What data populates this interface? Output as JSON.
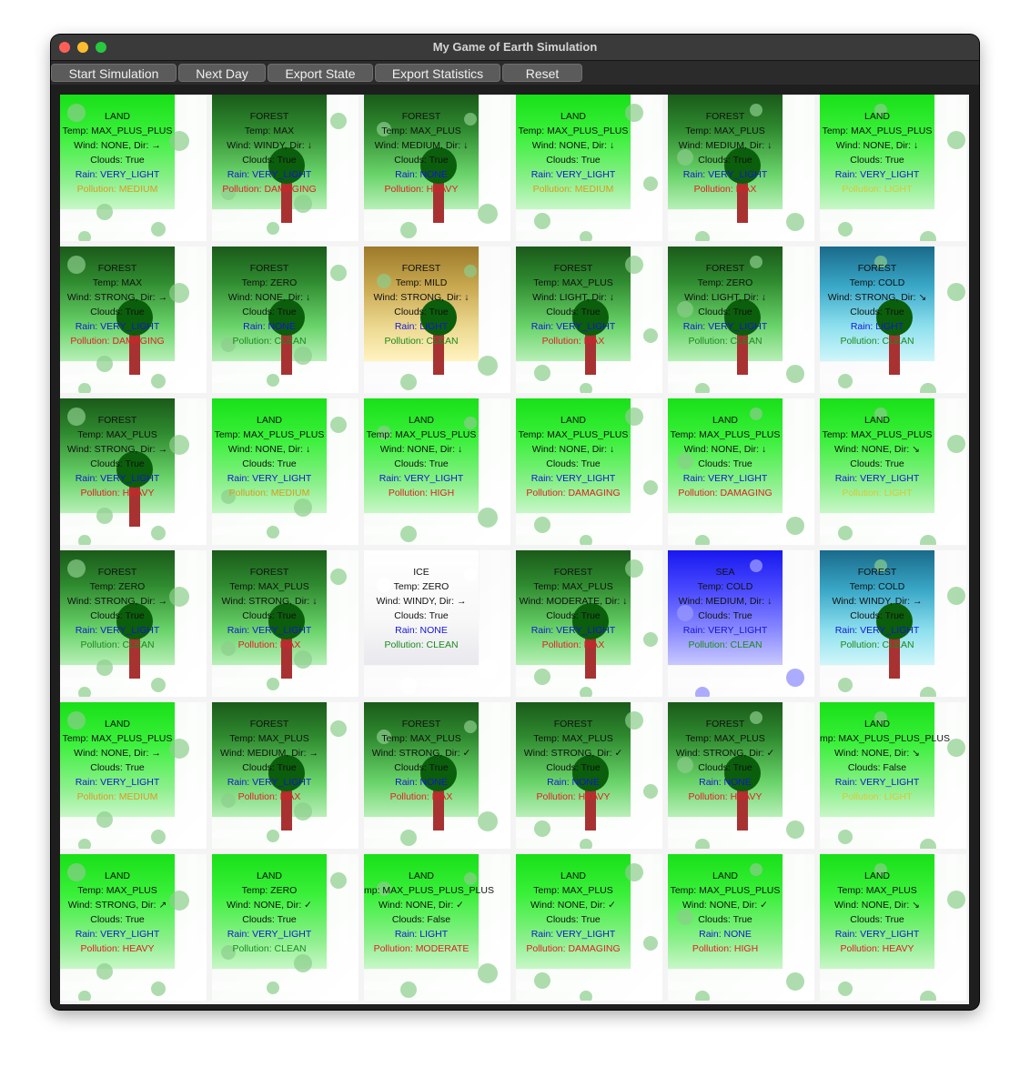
{
  "window": {
    "title": "My Game of Earth Simulation"
  },
  "toolbar": {
    "start": "Start Simulation",
    "next": "Next Day",
    "export_state": "Export State",
    "export_stats": "Export Statistics",
    "reset": "Reset"
  },
  "cells": [
    {
      "type": "LAND",
      "temp": "Temp: MAX_PLUS_PLUS",
      "wind": "Wind: NONE, Dir: →",
      "clouds": "Clouds: True",
      "rain": "Rain: VERY_LIGHT",
      "pollution": "Pollution: MEDIUM",
      "pcolor": "orange",
      "bg": "land"
    },
    {
      "type": "FOREST",
      "temp": "Temp: MAX",
      "wind": "Wind: WINDY, Dir: ↓",
      "clouds": "Clouds: True",
      "rain": "Rain: VERY_LIGHT",
      "pollution": "Pollution: DAMAGING",
      "pcolor": "red",
      "bg": "forest"
    },
    {
      "type": "FOREST",
      "temp": "Temp: MAX_PLUS",
      "wind": "Wind: MEDIUM, Dir: ↓",
      "clouds": "Clouds: True",
      "rain": "Rain: NONE",
      "pollution": "Pollution: HEAVY",
      "pcolor": "red",
      "bg": "forest"
    },
    {
      "type": "LAND",
      "temp": "Temp: MAX_PLUS_PLUS",
      "wind": "Wind: NONE, Dir: ↓",
      "clouds": "Clouds: True",
      "rain": "Rain: VERY_LIGHT",
      "pollution": "Pollution: MEDIUM",
      "pcolor": "orange",
      "bg": "land"
    },
    {
      "type": "FOREST",
      "temp": "Temp: MAX_PLUS",
      "wind": "Wind: MEDIUM, Dir: ↓",
      "clouds": "Clouds: True",
      "rain": "Rain: VERY_LIGHT",
      "pollution": "Pollution: MAX",
      "pcolor": "red",
      "bg": "forest"
    },
    {
      "type": "LAND",
      "temp": "Temp: MAX_PLUS_PLUS",
      "wind": "Wind: NONE, Dir: ↓",
      "clouds": "Clouds: True",
      "rain": "Rain: VERY_LIGHT",
      "pollution": "Pollution: LIGHT",
      "pcolor": "yellow",
      "bg": "land"
    },
    {
      "type": "FOREST",
      "temp": "Temp: MAX",
      "wind": "Wind: STRONG, Dir: →",
      "clouds": "Clouds: True",
      "rain": "Rain: VERY_LIGHT",
      "pollution": "Pollution: DAMAGING",
      "pcolor": "red",
      "bg": "forest"
    },
    {
      "type": "FOREST",
      "temp": "Temp: ZERO",
      "wind": "Wind: NONE, Dir: ↓",
      "clouds": "Clouds: True",
      "rain": "Rain: NONE",
      "pollution": "Pollution: CLEAN",
      "pcolor": "green",
      "bg": "forest"
    },
    {
      "type": "FOREST",
      "temp": "Temp: MILD",
      "wind": "Wind: STRONG, Dir: ↓",
      "clouds": "Clouds: True",
      "rain": "Rain: LIGHT",
      "pollution": "Pollution: CLEAN",
      "pcolor": "green",
      "bg": "desert"
    },
    {
      "type": "FOREST",
      "temp": "Temp: MAX_PLUS",
      "wind": "Wind: LIGHT, Dir: ↓",
      "clouds": "Clouds: True",
      "rain": "Rain: VERY_LIGHT",
      "pollution": "Pollution: MAX",
      "pcolor": "red",
      "bg": "forest"
    },
    {
      "type": "FOREST",
      "temp": "Temp: ZERO",
      "wind": "Wind: LIGHT, Dir: ↓",
      "clouds": "Clouds: True",
      "rain": "Rain: VERY_LIGHT",
      "pollution": "Pollution: CLEAN",
      "pcolor": "green",
      "bg": "forest"
    },
    {
      "type": "FOREST",
      "temp": "Temp: COLD",
      "wind": "Wind: STRONG, Dir: ↘",
      "clouds": "Clouds: True",
      "rain": "Rain: LIGHT",
      "pollution": "Pollution: CLEAN",
      "pcolor": "green",
      "bg": "cold"
    },
    {
      "type": "FOREST",
      "temp": "Temp: MAX_PLUS",
      "wind": "Wind: STRONG, Dir: →",
      "clouds": "Clouds: True",
      "rain": "Rain: VERY_LIGHT",
      "pollution": "Pollution: HEAVY",
      "pcolor": "red",
      "bg": "forest"
    },
    {
      "type": "LAND",
      "temp": "Temp: MAX_PLUS_PLUS",
      "wind": "Wind: NONE, Dir: ↓",
      "clouds": "Clouds: True",
      "rain": "Rain: VERY_LIGHT",
      "pollution": "Pollution: MEDIUM",
      "pcolor": "orange",
      "bg": "land"
    },
    {
      "type": "LAND",
      "temp": "Temp: MAX_PLUS_PLUS",
      "wind": "Wind: NONE, Dir: ↓",
      "clouds": "Clouds: True",
      "rain": "Rain: VERY_LIGHT",
      "pollution": "Pollution: HIGH",
      "pcolor": "red",
      "bg": "land"
    },
    {
      "type": "LAND",
      "temp": "Temp: MAX_PLUS_PLUS",
      "wind": "Wind: NONE, Dir: ↓",
      "clouds": "Clouds: True",
      "rain": "Rain: VERY_LIGHT",
      "pollution": "Pollution: DAMAGING",
      "pcolor": "red",
      "bg": "land"
    },
    {
      "type": "LAND",
      "temp": "Temp: MAX_PLUS_PLUS",
      "wind": "Wind: NONE, Dir: ↓",
      "clouds": "Clouds: True",
      "rain": "Rain: VERY_LIGHT",
      "pollution": "Pollution: DAMAGING",
      "pcolor": "red",
      "bg": "land"
    },
    {
      "type": "LAND",
      "temp": "Temp: MAX_PLUS_PLUS",
      "wind": "Wind: NONE, Dir: ↘",
      "clouds": "Clouds: True",
      "rain": "Rain: VERY_LIGHT",
      "pollution": "Pollution: LIGHT",
      "pcolor": "yellow",
      "bg": "land"
    },
    {
      "type": "FOREST",
      "temp": "Temp: ZERO",
      "wind": "Wind: STRONG, Dir: →",
      "clouds": "Clouds: True",
      "rain": "Rain: VERY_LIGHT",
      "pollution": "Pollution: CLEAN",
      "pcolor": "green",
      "bg": "forest"
    },
    {
      "type": "FOREST",
      "temp": "Temp: MAX_PLUS",
      "wind": "Wind: STRONG, Dir: ↓",
      "clouds": "Clouds: True",
      "rain": "Rain: VERY_LIGHT",
      "pollution": "Pollution: MAX",
      "pcolor": "red",
      "bg": "forest"
    },
    {
      "type": "ICE",
      "temp": "Temp: ZERO",
      "wind": "Wind: WINDY, Dir: →",
      "clouds": "Clouds: True",
      "rain": "Rain: NONE",
      "pollution": "Pollution: CLEAN",
      "pcolor": "green",
      "bg": "ice"
    },
    {
      "type": "FOREST",
      "temp": "Temp: MAX_PLUS",
      "wind": "Wind: MODERATE, Dir: ↓",
      "clouds": "Clouds: True",
      "rain": "Rain: VERY_LIGHT",
      "pollution": "Pollution: MAX",
      "pcolor": "red",
      "bg": "forest"
    },
    {
      "type": "SEA",
      "temp": "Temp: COLD",
      "wind": "Wind: MEDIUM, Dir: ↓",
      "clouds": "Clouds: True",
      "rain": "Rain: VERY_LIGHT",
      "pollution": "Pollution: CLEAN",
      "pcolor": "green",
      "bg": "sea"
    },
    {
      "type": "FOREST",
      "temp": "Temp: COLD",
      "wind": "Wind: WINDY, Dir: →",
      "clouds": "Clouds: True",
      "rain": "Rain: VERY_LIGHT",
      "pollution": "Pollution: CLEAN",
      "pcolor": "green",
      "bg": "cold"
    },
    {
      "type": "LAND",
      "temp": "Temp: MAX_PLUS_PLUS",
      "wind": "Wind: NONE, Dir: →",
      "clouds": "Clouds: True",
      "rain": "Rain: VERY_LIGHT",
      "pollution": "Pollution: MEDIUM",
      "pcolor": "orange",
      "bg": "land"
    },
    {
      "type": "FOREST",
      "temp": "Temp: MAX_PLUS",
      "wind": "Wind: MEDIUM, Dir: →",
      "clouds": "Clouds: True",
      "rain": "Rain: VERY_LIGHT",
      "pollution": "Pollution: MAX",
      "pcolor": "red",
      "bg": "forest"
    },
    {
      "type": "FOREST",
      "temp": "Temp: MAX_PLUS",
      "wind": "Wind: STRONG, Dir: ✓",
      "clouds": "Clouds: True",
      "rain": "Rain: NONE",
      "pollution": "Pollution: MAX",
      "pcolor": "red",
      "bg": "forest"
    },
    {
      "type": "FOREST",
      "temp": "Temp: MAX_PLUS",
      "wind": "Wind: STRONG, Dir: ✓",
      "clouds": "Clouds: True",
      "rain": "Rain: NONE",
      "pollution": "Pollution: HEAVY",
      "pcolor": "red",
      "bg": "forest"
    },
    {
      "type": "FOREST",
      "temp": "Temp: MAX_PLUS",
      "wind": "Wind: STRONG, Dir: ✓",
      "clouds": "Clouds: True",
      "rain": "Rain: NONE",
      "pollution": "Pollution: HEAVY",
      "pcolor": "red",
      "bg": "forest"
    },
    {
      "type": "LAND",
      "temp": "mp: MAX_PLUS_PLUS_PLUS",
      "wind": "Wind: NONE, Dir: ↘",
      "clouds": "Clouds: False",
      "rain": "Rain: VERY_LIGHT",
      "pollution": "Pollution: LIGHT",
      "pcolor": "yellow",
      "bg": "land"
    },
    {
      "type": "LAND",
      "temp": "Temp: MAX_PLUS",
      "wind": "Wind: STRONG, Dir: ↗",
      "clouds": "Clouds: True",
      "rain": "Rain: VERY_LIGHT",
      "pollution": "Pollution: HEAVY",
      "pcolor": "red",
      "bg": "land"
    },
    {
      "type": "LAND",
      "temp": "Temp: ZERO",
      "wind": "Wind: NONE, Dir: ✓",
      "clouds": "Clouds: True",
      "rain": "Rain: VERY_LIGHT",
      "pollution": "Pollution: CLEAN",
      "pcolor": "green",
      "bg": "land"
    },
    {
      "type": "LAND",
      "temp": "mp: MAX_PLUS_PLUS_PLUS",
      "wind": "Wind: NONE, Dir: ✓",
      "clouds": "Clouds: False",
      "rain": "Rain: LIGHT",
      "pollution": "Pollution: MODERATE",
      "pcolor": "red",
      "bg": "land"
    },
    {
      "type": "LAND",
      "temp": "Temp: MAX_PLUS",
      "wind": "Wind: NONE, Dir: ✓",
      "clouds": "Clouds: True",
      "rain": "Rain: VERY_LIGHT",
      "pollution": "Pollution: DAMAGING",
      "pcolor": "red",
      "bg": "land"
    },
    {
      "type": "LAND",
      "temp": "Temp: MAX_PLUS_PLUS",
      "wind": "Wind: NONE, Dir: ✓",
      "clouds": "Clouds: True",
      "rain": "Rain: NONE",
      "pollution": "Pollution: HIGH",
      "pcolor": "red",
      "bg": "land"
    },
    {
      "type": "LAND",
      "temp": "Temp: MAX_PLUS",
      "wind": "Wind: NONE, Dir: ↘",
      "clouds": "Clouds: True",
      "rain": "Rain: VERY_LIGHT",
      "pollution": "Pollution: HEAVY",
      "pcolor": "red",
      "bg": "land"
    }
  ],
  "colors": {
    "land": "#22ee22",
    "forest": "#1f7a1f",
    "desert": "#c8a850",
    "cold": "#2a8fb0",
    "ice": "#f8f8f8",
    "sea": "#2222ff",
    "tree_trunk": "#a83232",
    "tree_crown": "#0b5e0b"
  }
}
